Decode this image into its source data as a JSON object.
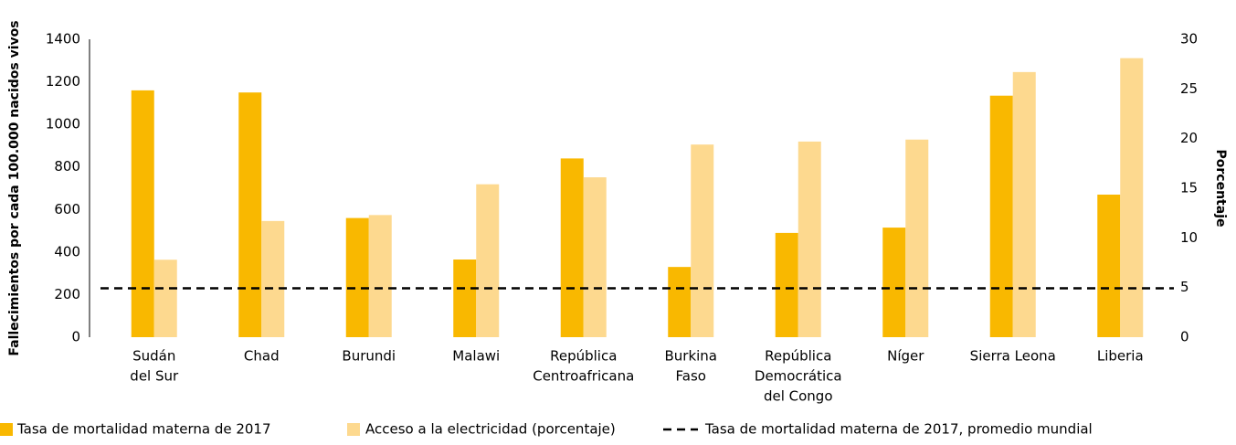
{
  "chart_data": {
    "type": "bar",
    "categories": [
      [
        "Sudán",
        "del Sur"
      ],
      [
        "Chad"
      ],
      [
        "Burundi"
      ],
      [
        "Malawi"
      ],
      [
        "República",
        "Centroafricana"
      ],
      [
        "Burkina",
        "Faso"
      ],
      [
        "República",
        "Democrática",
        "del Congo"
      ],
      [
        "Níger"
      ],
      [
        "Sierra Leona"
      ],
      [
        "Liberia"
      ]
    ],
    "series": [
      {
        "name": "Tasa de mortalidad materna de 2017",
        "color": "#f9b800",
        "values": [
          1160,
          1150,
          560,
          365,
          840,
          330,
          490,
          515,
          1135,
          670
        ]
      },
      {
        "name": "Acceso a la electricidad (porcentaje)",
        "color": "#fdd98f",
        "axis": "y2",
        "values": [
          7.8,
          11.7,
          12.3,
          15.4,
          16.1,
          19.4,
          19.7,
          19.9,
          26.7,
          28.1
        ]
      }
    ],
    "reference_line": {
      "name": "Tasa de mortalidad materna de 2017, promedio mundial",
      "value": 230,
      "color": "#000000"
    },
    "ylabel": "Fallecimientos por cada 100.000 nacidos vivos",
    "y2label": "Porcentaje",
    "ylim": [
      0,
      1400
    ],
    "yticks": [
      0,
      200,
      400,
      600,
      800,
      1000,
      1200,
      1400
    ],
    "y2lim": [
      0,
      30
    ],
    "y2ticks": [
      0,
      5,
      10,
      15,
      20,
      25,
      30
    ]
  }
}
